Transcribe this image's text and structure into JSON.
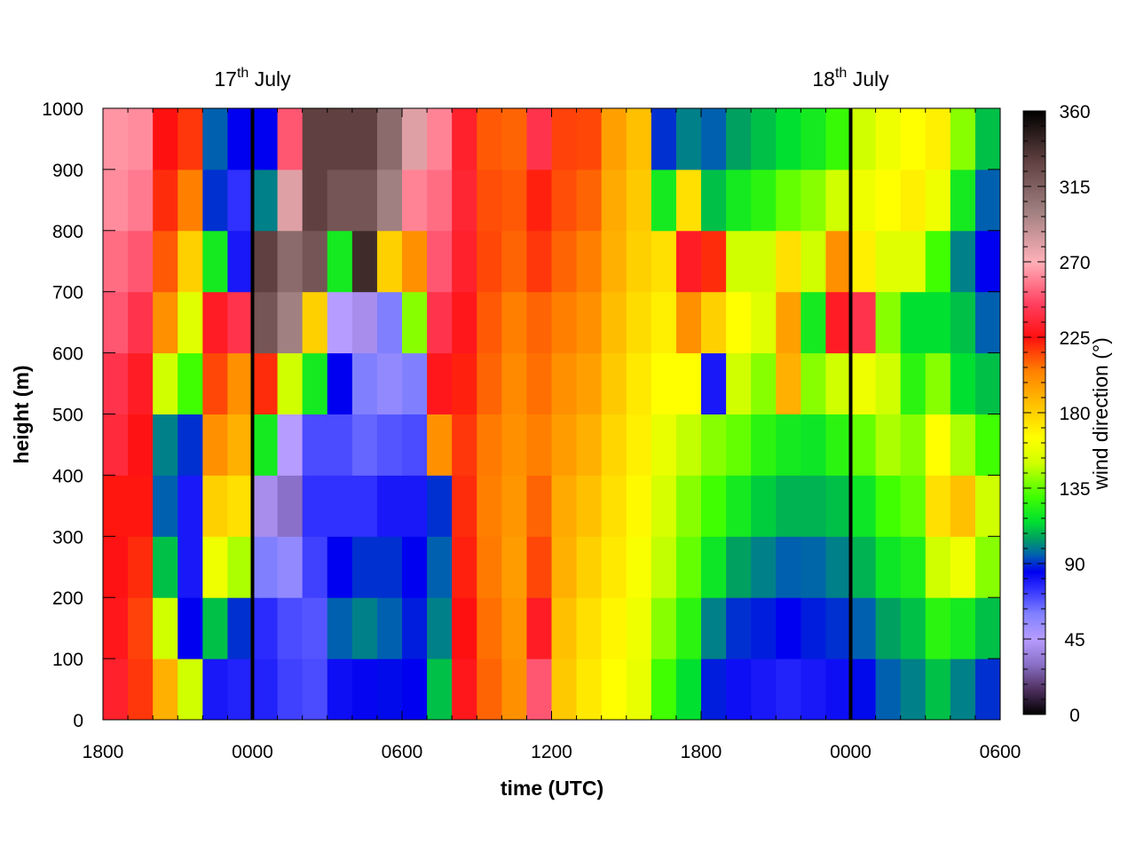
{
  "chart_data": {
    "type": "heatmap",
    "title": "",
    "xlabel": "time (UTC)",
    "ylabel": "height (m)",
    "colorbar_label": "wind direction (°)",
    "x_ticks": [
      "1800",
      "0000",
      "0600",
      "1200",
      "1800",
      "0000",
      "0600"
    ],
    "x_hours": [
      0,
      6,
      12,
      18,
      24,
      30,
      36
    ],
    "xlim": [
      0,
      36
    ],
    "y_ticks": [
      "0",
      "100",
      "200",
      "300",
      "400",
      "500",
      "600",
      "700",
      "800",
      "900",
      "1000"
    ],
    "ylim": [
      0,
      1000
    ],
    "colorbar_ticks": [
      "0",
      "45",
      "90",
      "135",
      "180",
      "225",
      "270",
      "315",
      "360"
    ],
    "clim": [
      0,
      360
    ],
    "day_markers": [
      {
        "hour": 6,
        "label_main": "17",
        "label_sup": "th",
        "label_rest": " July"
      },
      {
        "hour": 30,
        "label_main": "18",
        "label_sup": "th",
        "label_rest": " July"
      }
    ],
    "palette": [
      {
        "v": 0,
        "c": "#000000"
      },
      {
        "v": 15,
        "c": "#503060"
      },
      {
        "v": 30,
        "c": "#8a70c8"
      },
      {
        "v": 45,
        "c": "#b79cff"
      },
      {
        "v": 60,
        "c": "#8080ff"
      },
      {
        "v": 75,
        "c": "#3030ff"
      },
      {
        "v": 85,
        "c": "#0000f0"
      },
      {
        "v": 95,
        "c": "#0060b0"
      },
      {
        "v": 105,
        "c": "#00a060"
      },
      {
        "v": 115,
        "c": "#00e030"
      },
      {
        "v": 130,
        "c": "#40ff00"
      },
      {
        "v": 150,
        "c": "#d0ff00"
      },
      {
        "v": 165,
        "c": "#ffff00"
      },
      {
        "v": 185,
        "c": "#ffc000"
      },
      {
        "v": 205,
        "c": "#ff8000"
      },
      {
        "v": 225,
        "c": "#ff1010"
      },
      {
        "v": 245,
        "c": "#ff4060"
      },
      {
        "v": 270,
        "c": "#ffb0b8"
      },
      {
        "v": 300,
        "c": "#a08080"
      },
      {
        "v": 330,
        "c": "#604040"
      },
      {
        "v": 360,
        "c": "#000000"
      }
    ],
    "grid": {
      "cols": 36,
      "rows": 10,
      "col_width_hours": 1,
      "row_height_m": 100
    },
    "values": [
      [
        232,
        228,
        226,
        224,
        236,
        240,
        250,
        255,
        262,
        264
      ],
      [
        218,
        216,
        220,
        224,
        226,
        230,
        240,
        250,
        258,
        262
      ],
      [
        190,
        150,
        110,
        95,
        100,
        150,
        200,
        212,
        220,
        225
      ],
      [
        150,
        85,
        80,
        80,
        90,
        130,
        155,
        180,
        205,
        218
      ],
      [
        80,
        110,
        160,
        180,
        200,
        215,
        230,
        120,
        90,
        95
      ],
      [
        78,
        90,
        145,
        175,
        190,
        200,
        240,
        80,
        75,
        85
      ],
      [
        78,
        76,
        60,
        40,
        120,
        220,
        320,
        330,
        100,
        85
      ],
      [
        72,
        70,
        55,
        30,
        45,
        150,
        300,
        310,
        280,
        250
      ],
      [
        70,
        68,
        72,
        75,
        70,
        120,
        180,
        320,
        330,
        330
      ],
      [
        82,
        95,
        85,
        75,
        70,
        85,
        45,
        120,
        320,
        330
      ],
      [
        84,
        100,
        90,
        75,
        65,
        60,
        40,
        340,
        320,
        330
      ],
      [
        86,
        95,
        90,
        80,
        68,
        55,
        60,
        180,
        300,
        310
      ],
      [
        85,
        88,
        85,
        80,
        70,
        60,
        140,
        200,
        260,
        280
      ],
      [
        110,
        100,
        95,
        90,
        200,
        228,
        240,
        250,
        255,
        260
      ],
      [
        228,
        225,
        222,
        220,
        218,
        222,
        228,
        232,
        234,
        232
      ],
      [
        210,
        208,
        206,
        205,
        206,
        210,
        212,
        215,
        214,
        212
      ],
      [
        200,
        198,
        196,
        198,
        200,
        202,
        205,
        210,
        212,
        210
      ],
      [
        250,
        230,
        215,
        210,
        205,
        208,
        210,
        218,
        222,
        240
      ],
      [
        182,
        185,
        190,
        192,
        196,
        200,
        205,
        210,
        214,
        216
      ],
      [
        172,
        175,
        180,
        185,
        190,
        195,
        200,
        205,
        210,
        215
      ],
      [
        165,
        168,
        172,
        175,
        178,
        182,
        186,
        190,
        192,
        195
      ],
      [
        158,
        160,
        163,
        167,
        170,
        172,
        176,
        180,
        182,
        185
      ],
      [
        130,
        140,
        148,
        152,
        158,
        165,
        170,
        175,
        120,
        90
      ],
      [
        115,
        125,
        135,
        140,
        148,
        165,
        200,
        230,
        175,
        100
      ],
      [
        88,
        100,
        118,
        130,
        140,
        80,
        180,
        220,
        110,
        95
      ],
      [
        82,
        90,
        105,
        120,
        135,
        150,
        165,
        150,
        120,
        105
      ],
      [
        80,
        88,
        100,
        112,
        125,
        140,
        155,
        150,
        125,
        110
      ],
      [
        78,
        85,
        95,
        108,
        120,
        190,
        195,
        175,
        135,
        115
      ],
      [
        80,
        88,
        96,
        108,
        118,
        140,
        120,
        150,
        140,
        120
      ],
      [
        82,
        90,
        100,
        110,
        125,
        150,
        230,
        200,
        150,
        128
      ],
      [
        86,
        95,
        108,
        118,
        135,
        160,
        240,
        170,
        160,
        150
      ],
      [
        95,
        105,
        118,
        130,
        145,
        150,
        140,
        155,
        165,
        160
      ],
      [
        100,
        110,
        122,
        135,
        140,
        125,
        115,
        155,
        170,
        165
      ],
      [
        110,
        125,
        150,
        175,
        165,
        140,
        115,
        130,
        160,
        170
      ],
      [
        100,
        120,
        160,
        185,
        145,
        115,
        110,
        100,
        120,
        140
      ],
      [
        90,
        110,
        140,
        150,
        130,
        110,
        95,
        85,
        95,
        110
      ]
    ]
  }
}
